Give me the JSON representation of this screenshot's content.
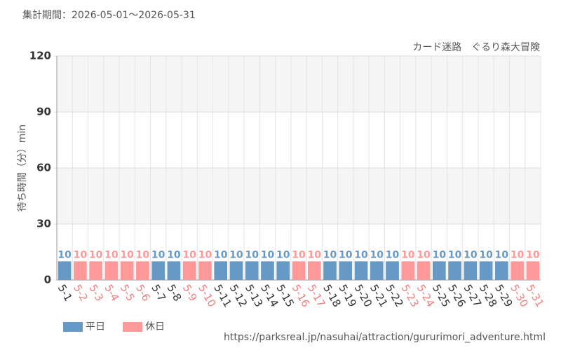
{
  "chart_data": {
    "type": "bar",
    "period": "集計期間：2026-05-01～2026-05-31",
    "title": "カード迷路　ぐるり森大冒険",
    "y_label": "待ち時間（分）min",
    "source": "https://parksreal.jp/nasuhai/attraction/gururimori_adventure.html",
    "categories": [
      "5-1",
      "5-2",
      "5-3",
      "5-4",
      "5-5",
      "5-6",
      "5-7",
      "5-8",
      "5-9",
      "5-10",
      "5-11",
      "5-12",
      "5-13",
      "5-14",
      "5-15",
      "5-16",
      "5-17",
      "5-18",
      "5-19",
      "5-20",
      "5-21",
      "5-22",
      "5-23",
      "5-24",
      "5-25",
      "5-26",
      "5-27",
      "5-28",
      "5-29",
      "5-30",
      "5-31"
    ],
    "series": [
      {
        "name": "平日",
        "color": "#6699c6",
        "label_color": "#333333",
        "values": [
          10,
          null,
          null,
          null,
          null,
          null,
          10,
          10,
          null,
          null,
          10,
          10,
          10,
          10,
          10,
          null,
          null,
          10,
          10,
          10,
          10,
          10,
          null,
          null,
          10,
          10,
          10,
          10,
          10,
          null,
          null
        ]
      },
      {
        "name": "休日",
        "color": "#ff9999",
        "label_color": "#f08080",
        "values": [
          null,
          10,
          10,
          10,
          10,
          10,
          null,
          null,
          10,
          10,
          null,
          null,
          null,
          null,
          null,
          10,
          10,
          null,
          null,
          null,
          null,
          null,
          10,
          10,
          null,
          null,
          null,
          null,
          null,
          10,
          10
        ]
      }
    ],
    "ylim": [
      0,
      120
    ],
    "yticks": [
      0,
      30,
      60,
      90,
      120
    ],
    "grid": true
  }
}
